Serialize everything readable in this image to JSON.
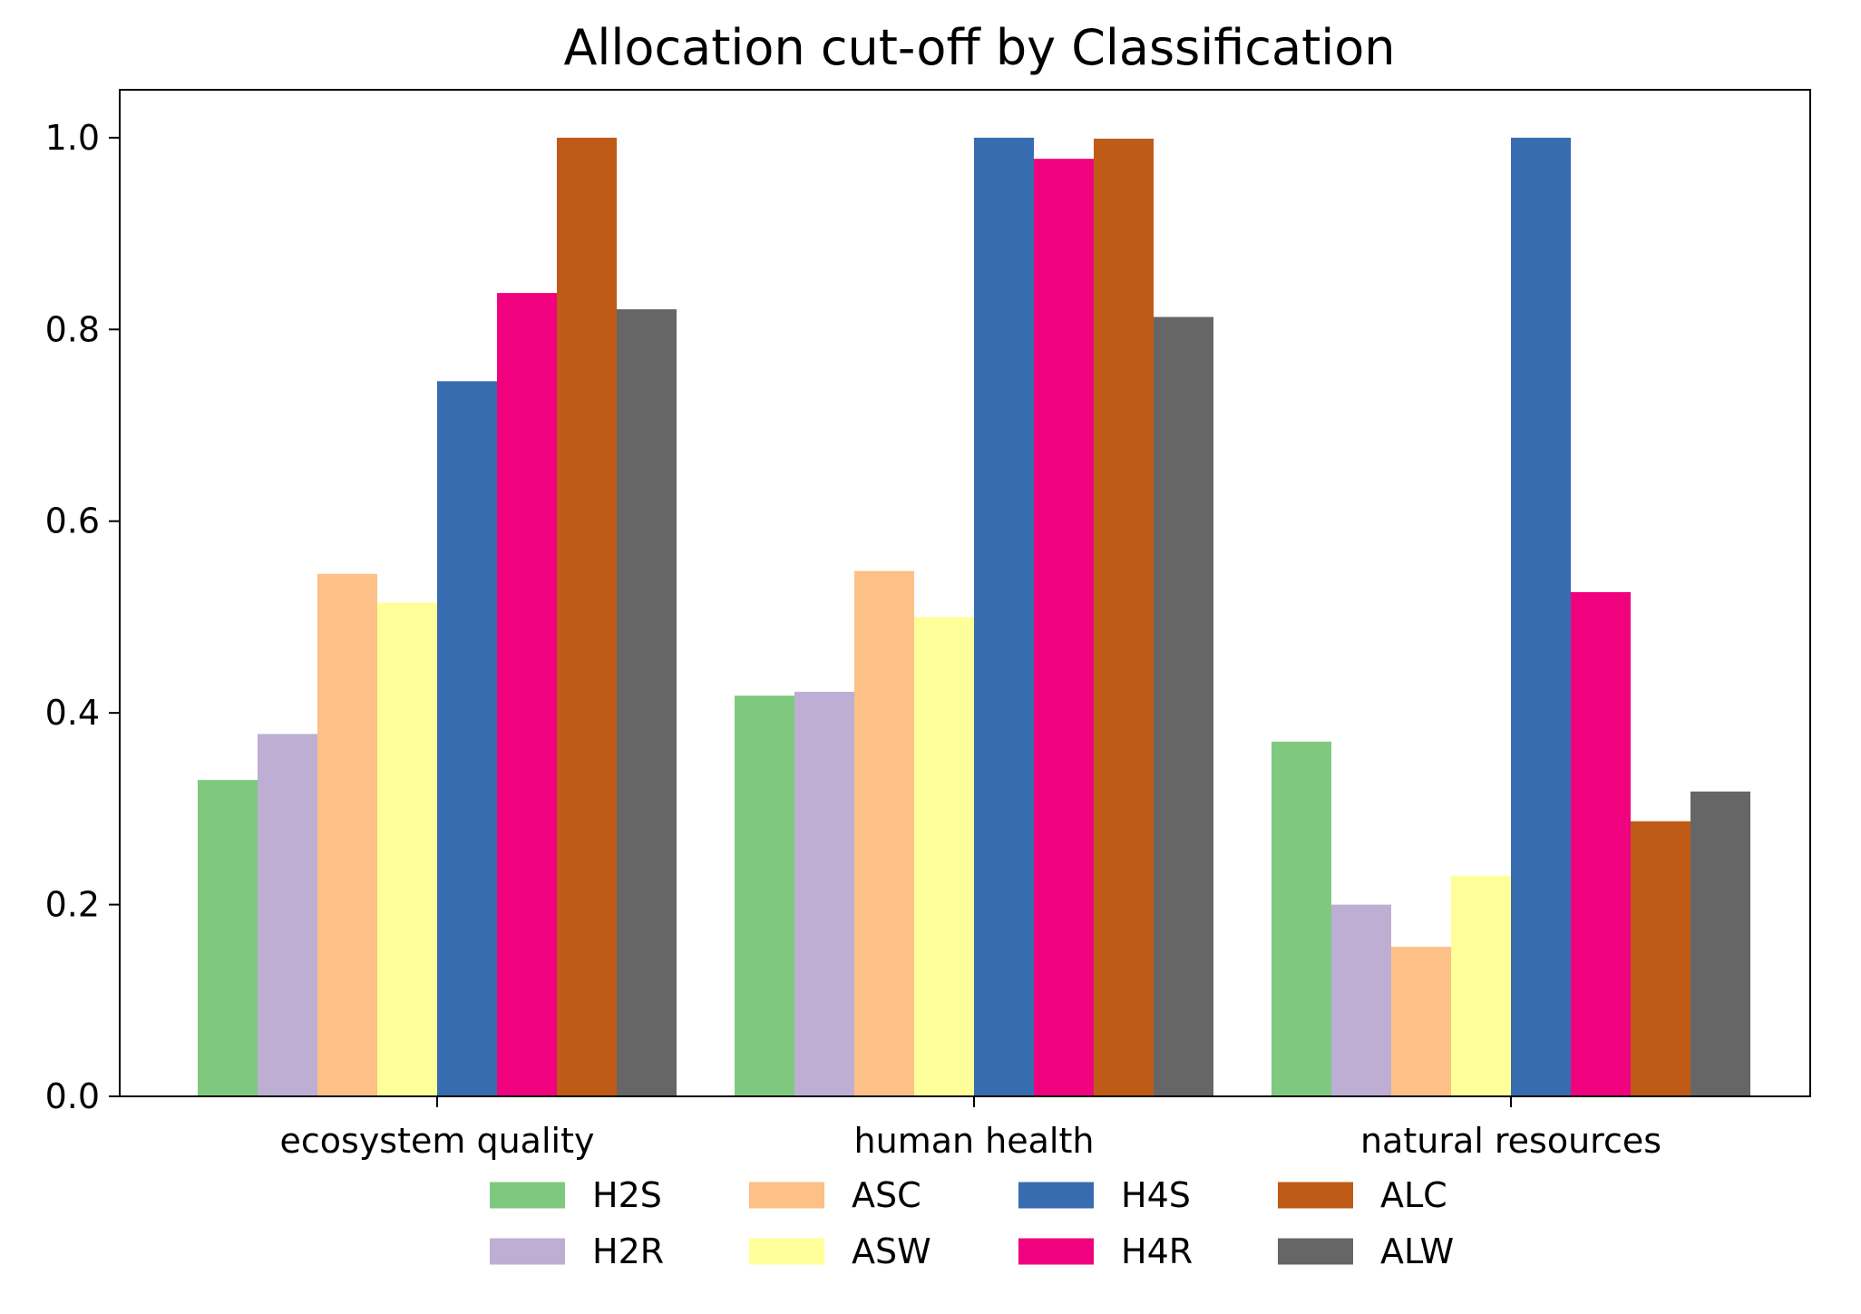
{
  "chart_data": {
    "type": "bar",
    "title": "Allocation cut-off by Classification",
    "xlabel": "",
    "ylabel": "",
    "categories": [
      "ecosystem quality",
      "human health",
      "natural resources"
    ],
    "ylim": [
      0,
      1.05
    ],
    "yticks": [
      "0.0",
      "0.2",
      "0.4",
      "0.6",
      "0.8",
      "1.0"
    ],
    "grid": false,
    "legend": {
      "placement": "bottom-center",
      "columns": 4
    },
    "series": [
      {
        "name": "H2S",
        "color": "#7fc97f",
        "values": [
          0.33,
          0.418,
          0.37
        ]
      },
      {
        "name": "H2R",
        "color": "#beaed4",
        "values": [
          0.378,
          0.422,
          0.2
        ]
      },
      {
        "name": "ASC",
        "color": "#fdc086",
        "values": [
          0.545,
          0.548,
          0.156
        ]
      },
      {
        "name": "ASW",
        "color": "#ffff99",
        "values": [
          0.515,
          0.5,
          0.23
        ]
      },
      {
        "name": "H4S",
        "color": "#386cb0",
        "values": [
          0.746,
          1.0,
          1.0
        ]
      },
      {
        "name": "H4R",
        "color": "#f0027f",
        "values": [
          0.838,
          0.978,
          0.526
        ]
      },
      {
        "name": "ALC",
        "color": "#bf5b17",
        "values": [
          1.0,
          0.999,
          0.287
        ]
      },
      {
        "name": "ALW",
        "color": "#666666",
        "values": [
          0.821,
          0.813,
          0.318
        ]
      }
    ]
  }
}
